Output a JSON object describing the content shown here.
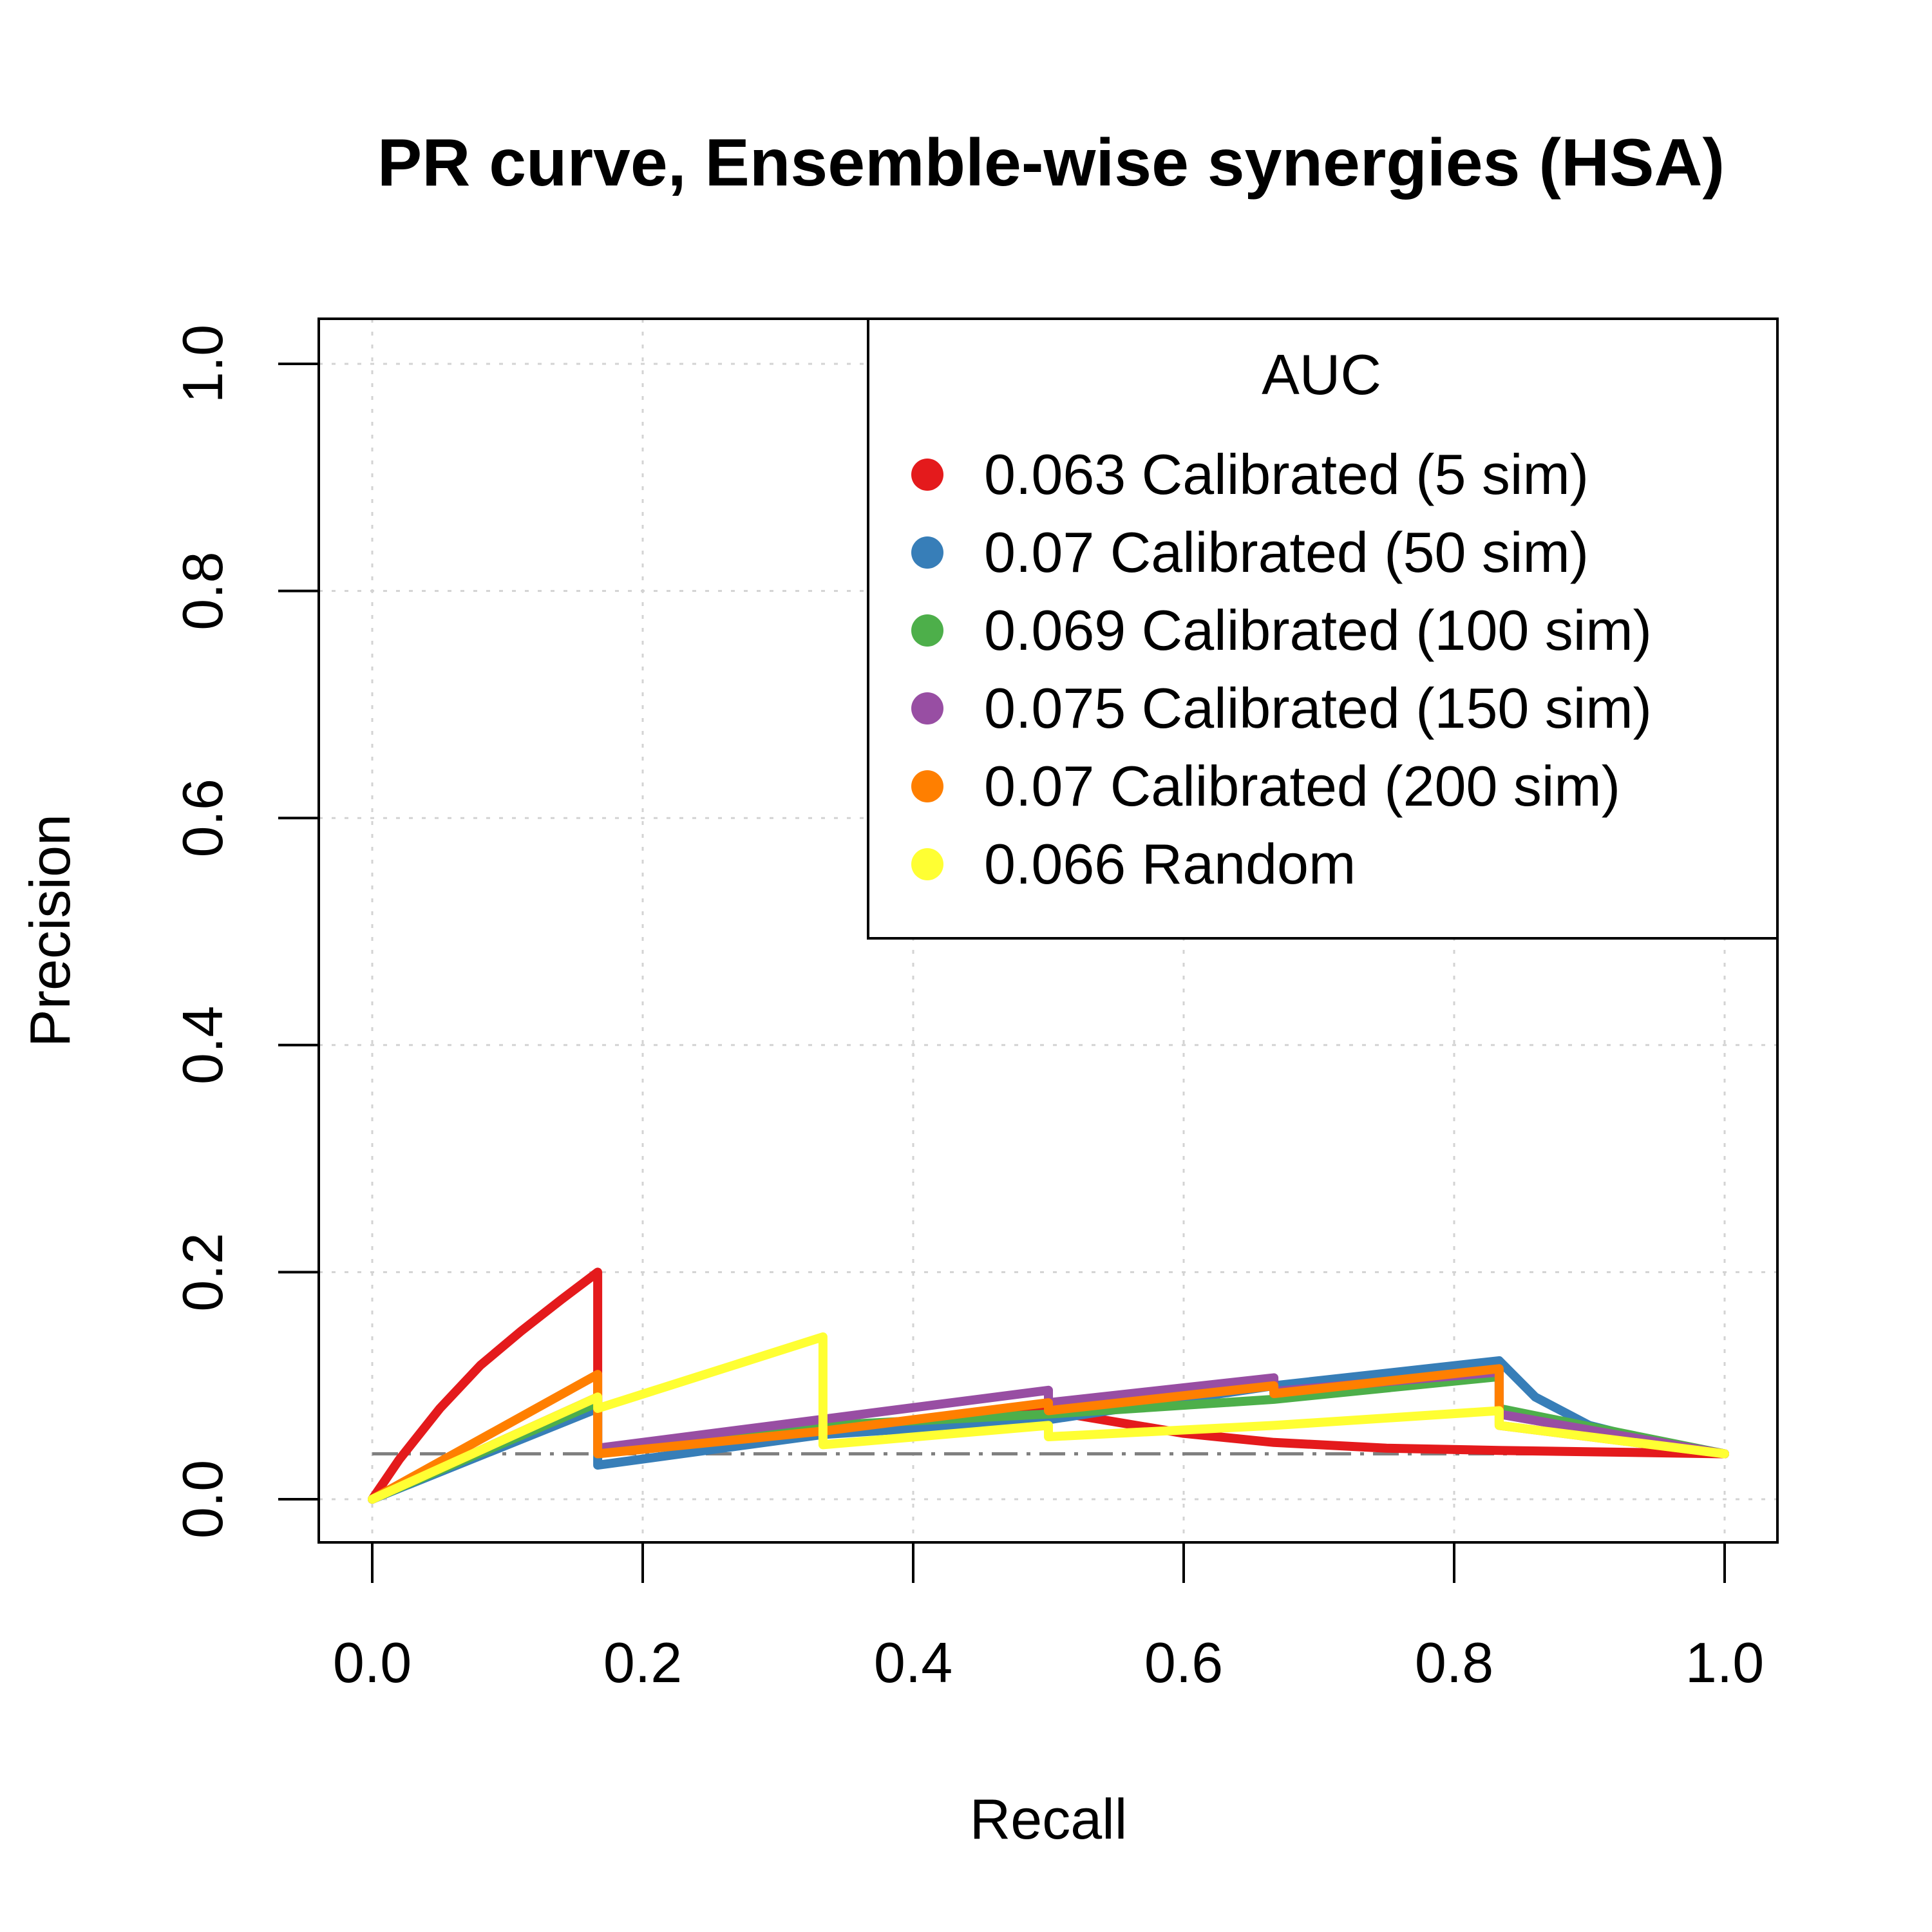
{
  "chart_data": {
    "type": "line",
    "title": "PR curve, Ensemble-wise synergies (HSA)",
    "xlabel": "Recall",
    "ylabel": "Precision",
    "xlim": [
      -0.04,
      1.04
    ],
    "ylim": [
      -0.04,
      1.04
    ],
    "xticks": [
      0.0,
      0.2,
      0.4,
      0.6,
      0.8,
      1.0
    ],
    "yticks": [
      0.0,
      0.2,
      0.4,
      0.6,
      0.8,
      1.0
    ],
    "xtick_labels": [
      "0.0",
      "0.2",
      "0.4",
      "0.6",
      "0.8",
      "1.0"
    ],
    "ytick_labels": [
      "0.0",
      "0.2",
      "0.4",
      "0.6",
      "0.8",
      "1.0"
    ],
    "grid": true,
    "baseline": {
      "y": 0.04,
      "x_from": 0.0,
      "x_to": 1.0,
      "color": "#808080"
    },
    "legend": {
      "title": "AUC",
      "position": "top-right"
    },
    "series": [
      {
        "name": "0.063 Calibrated (5 sim)",
        "color": "#e41a1c",
        "points": [
          [
            0,
            0
          ],
          [
            0.02,
            0.035
          ],
          [
            0.05,
            0.08
          ],
          [
            0.08,
            0.118
          ],
          [
            0.11,
            0.148
          ],
          [
            0.14,
            0.176
          ],
          [
            0.1667,
            0.2
          ],
          [
            0.1667,
            0.045
          ],
          [
            0.3333,
            0.063
          ],
          [
            0.5,
            0.078
          ],
          [
            0.6,
            0.058
          ],
          [
            0.6667,
            0.05
          ],
          [
            0.75,
            0.045
          ],
          [
            0.8333,
            0.043
          ],
          [
            1.0,
            0.04
          ]
        ]
      },
      {
        "name": "0.07 Calibrated (50 sim)",
        "color": "#377eb8",
        "points": [
          [
            0,
            0
          ],
          [
            0.1667,
            0.08
          ],
          [
            0.1667,
            0.03
          ],
          [
            0.3333,
            0.057
          ],
          [
            0.5,
            0.07
          ],
          [
            0.6667,
            0.1
          ],
          [
            0.8333,
            0.122
          ],
          [
            0.86,
            0.09
          ],
          [
            0.9,
            0.065
          ],
          [
            0.95,
            0.05
          ],
          [
            1.0,
            0.04
          ]
        ]
      },
      {
        "name": "0.069 Calibrated (100 sim)",
        "color": "#4daf4a",
        "points": [
          [
            0,
            0
          ],
          [
            0.1667,
            0.085
          ],
          [
            0.1667,
            0.04
          ],
          [
            0.3333,
            0.065
          ],
          [
            0.5,
            0.075
          ],
          [
            0.6667,
            0.088
          ],
          [
            0.8333,
            0.108
          ],
          [
            0.8333,
            0.08
          ],
          [
            1.0,
            0.04
          ]
        ]
      },
      {
        "name": "0.075 Calibrated (150 sim)",
        "color": "#984ea3",
        "points": [
          [
            0,
            0
          ],
          [
            0.1667,
            0.09
          ],
          [
            0.1667,
            0.045
          ],
          [
            0.5,
            0.096
          ],
          [
            0.5,
            0.085
          ],
          [
            0.6667,
            0.107
          ],
          [
            0.6667,
            0.095
          ],
          [
            0.8333,
            0.112
          ],
          [
            0.8333,
            0.075
          ],
          [
            1.0,
            0.04
          ]
        ]
      },
      {
        "name": "0.07 Calibrated (200 sim)",
        "color": "#ff7f00",
        "points": [
          [
            0,
            0
          ],
          [
            0.1667,
            0.11
          ],
          [
            0.1667,
            0.04
          ],
          [
            0.3333,
            0.06
          ],
          [
            0.5,
            0.085
          ],
          [
            0.5,
            0.078
          ],
          [
            0.6667,
            0.1
          ],
          [
            0.6667,
            0.093
          ],
          [
            0.8333,
            0.115
          ],
          [
            0.8333,
            0.065
          ],
          [
            1.0,
            0.04
          ]
        ]
      },
      {
        "name": "0.066 Random",
        "color": "#ffff33",
        "points": [
          [
            0,
            0
          ],
          [
            0.1667,
            0.09
          ],
          [
            0.1667,
            0.08
          ],
          [
            0.3333,
            0.143
          ],
          [
            0.3333,
            0.048
          ],
          [
            0.5,
            0.065
          ],
          [
            0.5,
            0.055
          ],
          [
            0.6667,
            0.065
          ],
          [
            0.8333,
            0.078
          ],
          [
            0.8333,
            0.065
          ],
          [
            1.0,
            0.04
          ]
        ]
      }
    ]
  }
}
